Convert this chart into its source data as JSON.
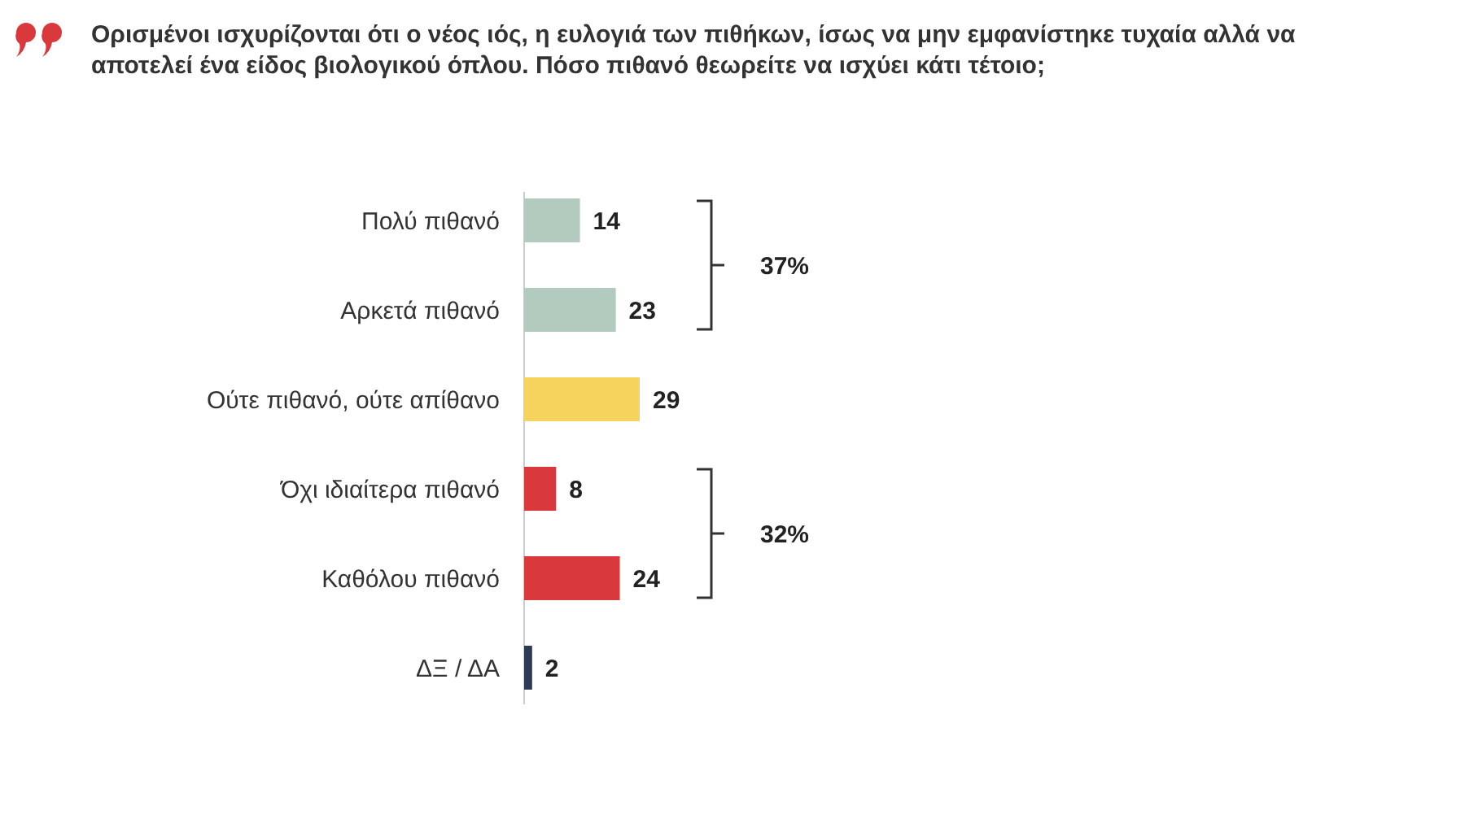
{
  "chart_data": {
    "type": "bar",
    "orientation": "horizontal",
    "title": "Ορισμένοι ισχυρίζονται ότι ο νέος ιός, η ευλογιά των πιθήκων, ίσως να μην εμφανίστηκε τυχαία αλλά να αποτελεί ένα είδος βιολογικού όπλου. Πόσο πιθανό θεωρείτε να ισχύει κάτι τέτοιο;",
    "categories": [
      "Πολύ πιθανό",
      "Αρκετά πιθανό",
      "Ούτε πιθανό, ούτε απίθανο",
      "Όχι ιδιαίτερα πιθανό",
      "Καθόλου πιθανό",
      "ΔΞ / ΔΑ"
    ],
    "values": [
      14,
      23,
      29,
      8,
      24,
      2
    ],
    "colors": [
      "#b3cbbf",
      "#b3cbbf",
      "#f6d35c",
      "#d9393c",
      "#d9393c",
      "#2b3a55"
    ],
    "data_labels": true,
    "annotations": [
      "37%",
      "32%"
    ]
  }
}
